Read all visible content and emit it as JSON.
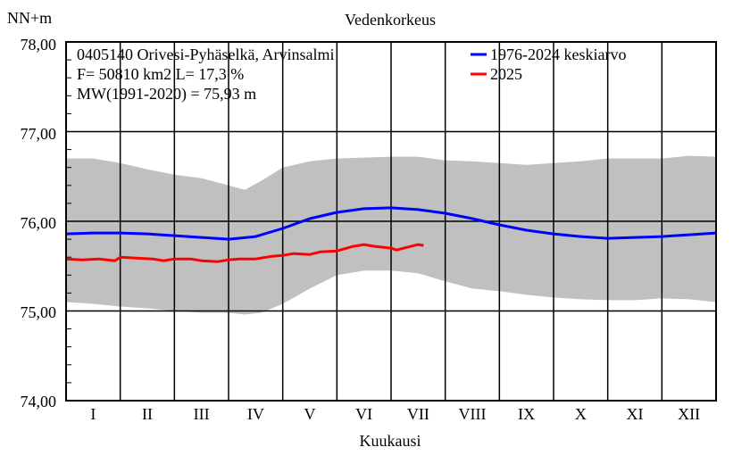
{
  "chart_data": {
    "type": "line",
    "title": "Vedenkorkeus",
    "ylabel": "NN+m",
    "xlabel": "Kuukausi",
    "ylim": [
      74.0,
      78.0
    ],
    "yticks": [
      "74,00",
      "75,00",
      "76,00",
      "77,00",
      "78,00"
    ],
    "months": [
      "I",
      "II",
      "III",
      "IV",
      "V",
      "VI",
      "VII",
      "VIII",
      "IX",
      "X",
      "XI",
      "XII"
    ],
    "info_lines": [
      "0405140 Orivesi-Pyhäselkä, Arvinsalmi",
      "F=  50810 km2 L=  17,3 %",
      "MW(1991-2020) = 75,93 m"
    ],
    "colors": {
      "mean": "#0000ff",
      "year": "#ff0000",
      "band": "#c0c0c0"
    },
    "band": {
      "x": [
        0,
        0.5,
        1,
        1.5,
        2,
        2.5,
        3,
        3.3,
        3.6,
        4,
        4.5,
        5,
        5.5,
        6,
        6.5,
        7,
        7.5,
        8,
        8.5,
        9,
        9.5,
        10,
        10.5,
        11,
        11.5,
        12
      ],
      "upper": [
        76.7,
        76.7,
        76.65,
        76.58,
        76.52,
        76.48,
        76.4,
        76.35,
        76.45,
        76.6,
        76.67,
        76.7,
        76.71,
        76.72,
        76.72,
        76.68,
        76.67,
        76.65,
        76.63,
        76.65,
        76.67,
        76.7,
        76.7,
        76.7,
        76.73,
        76.72
      ],
      "lower": [
        75.1,
        75.08,
        75.05,
        75.03,
        75.0,
        74.98,
        74.98,
        74.96,
        74.98,
        75.08,
        75.25,
        75.4,
        75.45,
        75.45,
        75.42,
        75.33,
        75.25,
        75.22,
        75.18,
        75.15,
        75.13,
        75.12,
        75.12,
        75.14,
        75.13,
        75.1
      ]
    },
    "series": [
      {
        "name": "1976-2024 keskiarvo",
        "x": [
          0,
          0.5,
          1,
          1.5,
          2,
          2.5,
          3,
          3.5,
          4,
          4.5,
          5,
          5.5,
          6,
          6.5,
          7,
          7.5,
          8,
          8.5,
          9,
          9.5,
          10,
          10.5,
          11,
          11.5,
          12
        ],
        "values": [
          75.86,
          75.87,
          75.87,
          75.86,
          75.84,
          75.82,
          75.8,
          75.83,
          75.92,
          76.03,
          76.1,
          76.14,
          76.15,
          76.13,
          76.09,
          76.03,
          75.96,
          75.9,
          75.86,
          75.83,
          75.81,
          75.82,
          75.83,
          75.85,
          75.87
        ]
      },
      {
        "name": "2025",
        "x": [
          0,
          0.3,
          0.6,
          0.9,
          1.0,
          1.3,
          1.6,
          1.8,
          2.0,
          2.3,
          2.5,
          2.8,
          3.0,
          3.2,
          3.5,
          3.8,
          4.0,
          4.2,
          4.5,
          4.7,
          5.0,
          5.3,
          5.5,
          5.7,
          6.0,
          6.1,
          6.3,
          6.5,
          6.6
        ],
        "values": [
          75.58,
          75.57,
          75.58,
          75.56,
          75.6,
          75.59,
          75.58,
          75.56,
          75.58,
          75.58,
          75.56,
          75.55,
          75.57,
          75.58,
          75.58,
          75.61,
          75.62,
          75.64,
          75.63,
          75.66,
          75.67,
          75.72,
          75.74,
          75.72,
          75.7,
          75.68,
          75.71,
          75.74,
          75.73
        ]
      }
    ]
  }
}
